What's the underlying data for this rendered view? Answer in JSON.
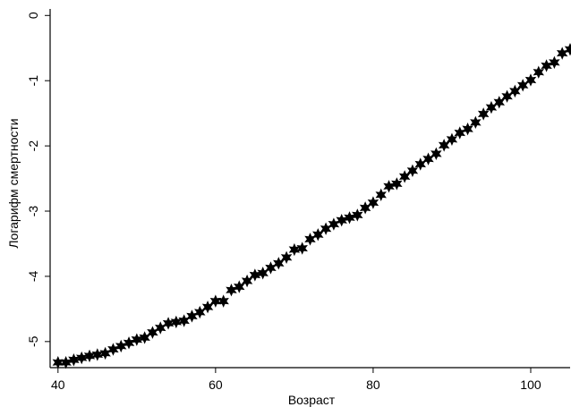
{
  "chart_data": {
    "type": "scatter",
    "title": "",
    "xlabel": "Возраст",
    "ylabel": "Логарифм смертности",
    "xlim": [
      39,
      105
    ],
    "ylim": [
      -5.4,
      0.1
    ],
    "xticks": [
      40,
      60,
      80,
      100
    ],
    "yticks": [
      0,
      -1,
      -2,
      -3,
      -4,
      -5
    ],
    "grid": false,
    "legend": "none",
    "marker": "filled-star",
    "marker_color": "#000000",
    "series": [
      {
        "x": [
          40,
          41,
          42,
          43,
          44,
          45,
          46,
          47,
          48,
          49,
          50,
          51,
          52,
          53,
          54,
          55,
          56,
          57,
          58,
          59,
          60,
          61,
          62,
          63,
          64,
          65,
          66,
          67,
          68,
          69,
          70,
          71,
          72,
          73,
          74,
          75,
          76,
          77,
          78,
          79,
          80,
          81,
          82,
          83,
          84,
          85,
          86,
          87,
          88,
          89,
          90,
          91,
          92,
          93,
          94,
          95,
          96,
          97,
          98,
          99,
          100,
          101,
          102,
          103,
          104,
          105
        ],
        "y": [
          -5.32,
          -5.32,
          -5.28,
          -5.25,
          -5.22,
          -5.2,
          -5.18,
          -5.12,
          -5.07,
          -5.02,
          -4.97,
          -4.94,
          -4.86,
          -4.79,
          -4.72,
          -4.7,
          -4.68,
          -4.61,
          -4.55,
          -4.47,
          -4.38,
          -4.38,
          -4.21,
          -4.16,
          -4.07,
          -3.98,
          -3.95,
          -3.87,
          -3.8,
          -3.71,
          -3.59,
          -3.57,
          -3.43,
          -3.36,
          -3.27,
          -3.2,
          -3.14,
          -3.1,
          -3.06,
          -2.95,
          -2.87,
          -2.75,
          -2.62,
          -2.58,
          -2.47,
          -2.38,
          -2.28,
          -2.2,
          -2.12,
          -1.99,
          -1.9,
          -1.8,
          -1.74,
          -1.64,
          -1.51,
          -1.41,
          -1.33,
          -1.24,
          -1.16,
          -1.07,
          -0.99,
          -0.87,
          -0.77,
          -0.72,
          -0.58,
          -0.52
        ]
      }
    ]
  }
}
